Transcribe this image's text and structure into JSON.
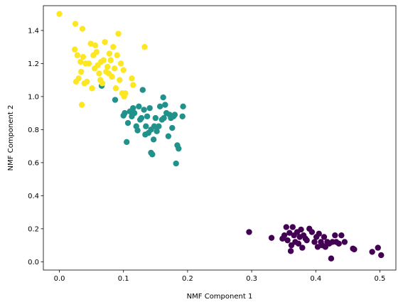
{
  "chart_data": {
    "type": "scatter",
    "title": "",
    "xlabel": "NMF Component 1",
    "ylabel": "NMF Component 2",
    "xlim": [
      -0.025,
      0.525
    ],
    "ylim": [
      -0.05,
      1.55
    ],
    "xticks": [
      0.0,
      0.1,
      0.2,
      0.3,
      0.4,
      0.5
    ],
    "xtick_labels": [
      "0.0",
      "0.1",
      "0.2",
      "0.3",
      "0.4",
      "0.5"
    ],
    "yticks": [
      0.0,
      0.2,
      0.4,
      0.6,
      0.8,
      1.0,
      1.2,
      1.4
    ],
    "ytick_labels": [
      "0.0",
      "0.2",
      "0.4",
      "0.6",
      "0.8",
      "1.0",
      "1.2",
      "1.4"
    ],
    "grid": false,
    "legend": "none",
    "series": [
      {
        "color": "#440154",
        "points": [
          [
            0.296,
            0.18
          ],
          [
            0.331,
            0.145
          ],
          [
            0.348,
            0.14
          ],
          [
            0.351,
            0.16
          ],
          [
            0.354,
            0.21
          ],
          [
            0.356,
            0.13
          ],
          [
            0.359,
            0.175
          ],
          [
            0.361,
            0.065
          ],
          [
            0.362,
            0.1
          ],
          [
            0.364,
            0.21
          ],
          [
            0.366,
            0.16
          ],
          [
            0.368,
            0.12
          ],
          [
            0.371,
            0.18
          ],
          [
            0.373,
            0.11
          ],
          [
            0.375,
            0.15
          ],
          [
            0.377,
            0.195
          ],
          [
            0.379,
            0.085
          ],
          [
            0.381,
            0.16
          ],
          [
            0.384,
            0.14
          ],
          [
            0.386,
            0.13
          ],
          [
            0.39,
            0.2
          ],
          [
            0.394,
            0.18
          ],
          [
            0.398,
            0.12
          ],
          [
            0.401,
            0.15
          ],
          [
            0.403,
            0.09
          ],
          [
            0.405,
            0.17
          ],
          [
            0.408,
            0.12
          ],
          [
            0.41,
            0.1
          ],
          [
            0.413,
            0.15
          ],
          [
            0.415,
            0.09
          ],
          [
            0.418,
            0.12
          ],
          [
            0.421,
            0.11
          ],
          [
            0.424,
            0.02
          ],
          [
            0.426,
            0.12
          ],
          [
            0.43,
            0.16
          ],
          [
            0.432,
            0.12
          ],
          [
            0.436,
            0.11
          ],
          [
            0.44,
            0.16
          ],
          [
            0.445,
            0.12
          ],
          [
            0.458,
            0.08
          ],
          [
            0.46,
            0.075
          ],
          [
            0.488,
            0.06
          ],
          [
            0.497,
            0.085
          ],
          [
            0.502,
            0.04
          ]
        ]
      },
      {
        "color": "#21918c",
        "points": [
          [
            0.066,
            1.065
          ],
          [
            0.087,
            0.98
          ],
          [
            0.1,
            0.885
          ],
          [
            0.102,
            0.9
          ],
          [
            0.105,
            0.725
          ],
          [
            0.107,
            0.84
          ],
          [
            0.11,
            0.91
          ],
          [
            0.113,
            0.88
          ],
          [
            0.115,
            0.93
          ],
          [
            0.117,
            0.9
          ],
          [
            0.12,
            0.82
          ],
          [
            0.122,
            0.795
          ],
          [
            0.124,
            0.94
          ],
          [
            0.126,
            0.86
          ],
          [
            0.128,
            0.87
          ],
          [
            0.13,
            1.04
          ],
          [
            0.132,
            0.92
          ],
          [
            0.134,
            0.77
          ],
          [
            0.135,
            0.82
          ],
          [
            0.137,
            0.88
          ],
          [
            0.139,
            0.78
          ],
          [
            0.141,
            0.93
          ],
          [
            0.143,
            0.66
          ],
          [
            0.143,
            0.8
          ],
          [
            0.145,
            0.65
          ],
          [
            0.147,
            0.74
          ],
          [
            0.148,
            0.82
          ],
          [
            0.15,
            0.87
          ],
          [
            0.152,
            0.79
          ],
          [
            0.155,
            0.82
          ],
          [
            0.157,
            0.94
          ],
          [
            0.16,
            0.86
          ],
          [
            0.162,
            0.995
          ],
          [
            0.163,
            0.87
          ],
          [
            0.165,
            0.95
          ],
          [
            0.167,
            0.9
          ],
          [
            0.17,
            0.76
          ],
          [
            0.172,
            0.89
          ],
          [
            0.174,
            0.87
          ],
          [
            0.176,
            0.81
          ],
          [
            0.178,
            0.88
          ],
          [
            0.18,
            0.89
          ],
          [
            0.182,
            0.595
          ],
          [
            0.184,
            0.705
          ],
          [
            0.186,
            0.685
          ],
          [
            0.192,
            0.88
          ],
          [
            0.193,
            0.94
          ]
        ]
      },
      {
        "color": "#fde725",
        "points": [
          [
            0.0,
            1.5
          ],
          [
            0.024,
            1.285
          ],
          [
            0.025,
            1.44
          ],
          [
            0.026,
            1.09
          ],
          [
            0.028,
            1.25
          ],
          [
            0.03,
            1.11
          ],
          [
            0.033,
            1.21
          ],
          [
            0.034,
            1.15
          ],
          [
            0.035,
            0.95
          ],
          [
            0.036,
            1.41
          ],
          [
            0.037,
            1.24
          ],
          [
            0.039,
            1.08
          ],
          [
            0.041,
            1.2
          ],
          [
            0.043,
            1.09
          ],
          [
            0.046,
            1.2
          ],
          [
            0.049,
            1.32
          ],
          [
            0.051,
            1.05
          ],
          [
            0.053,
            1.25
          ],
          [
            0.055,
            1.17
          ],
          [
            0.056,
            1.31
          ],
          [
            0.058,
            1.27
          ],
          [
            0.06,
            1.19
          ],
          [
            0.062,
            1.14
          ],
          [
            0.064,
            1.1
          ],
          [
            0.065,
            1.21
          ],
          [
            0.067,
            1.08
          ],
          [
            0.069,
            1.22
          ],
          [
            0.071,
            1.33
          ],
          [
            0.073,
            1.15
          ],
          [
            0.075,
            1.18
          ],
          [
            0.077,
            1.14
          ],
          [
            0.078,
            1.26
          ],
          [
            0.08,
            1.22
          ],
          [
            0.082,
            1.12
          ],
          [
            0.084,
            1.3
          ],
          [
            0.086,
            1.17
          ],
          [
            0.088,
            1.05
          ],
          [
            0.09,
            1.25
          ],
          [
            0.092,
            1.38
          ],
          [
            0.094,
            1.1
          ],
          [
            0.096,
            1.2
          ],
          [
            0.098,
            1.02
          ],
          [
            0.1,
            1.16
          ],
          [
            0.101,
            1.0
          ],
          [
            0.103,
            1.02
          ],
          [
            0.113,
            1.11
          ],
          [
            0.115,
            1.07
          ],
          [
            0.133,
            1.3
          ]
        ]
      }
    ]
  }
}
